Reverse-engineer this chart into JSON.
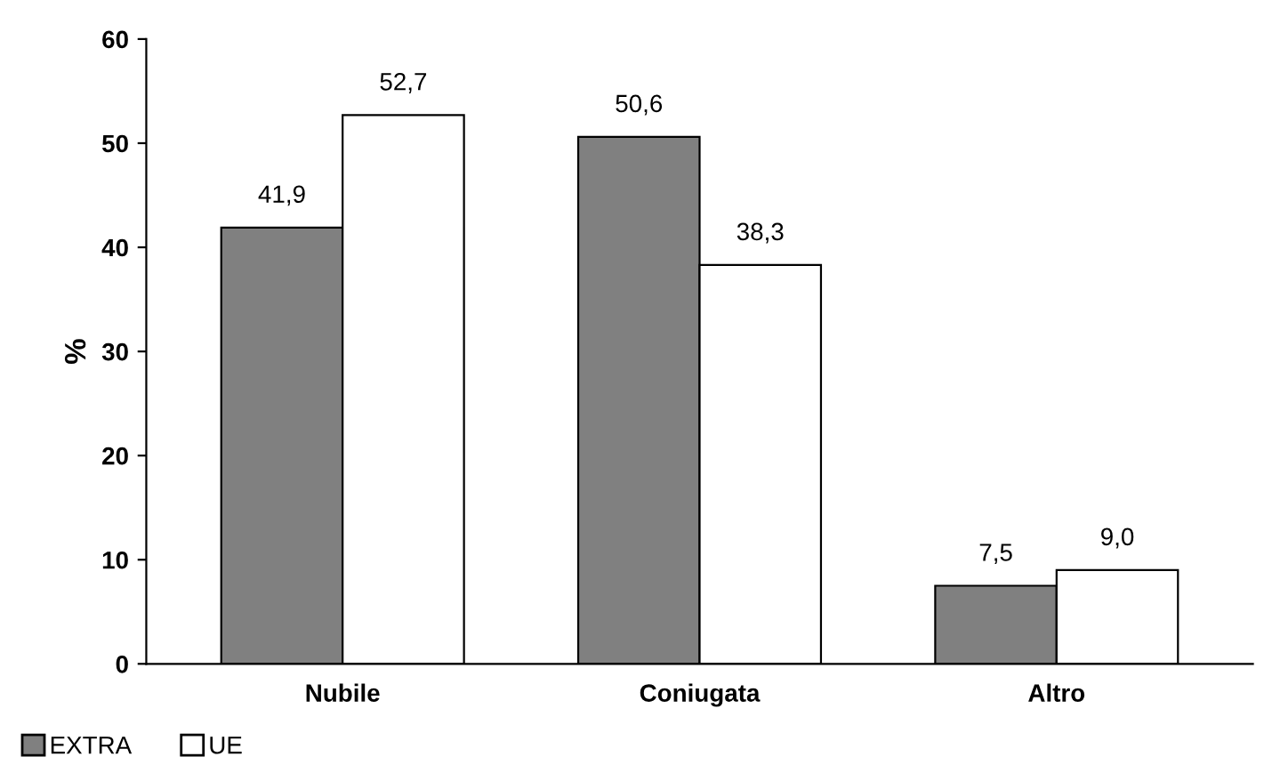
{
  "chart_data": {
    "type": "bar",
    "ylabel": "%",
    "categories": [
      "Nubile",
      "Coniugata",
      "Altro"
    ],
    "series": [
      {
        "name": "EXTRA",
        "color": "#808080",
        "values": [
          41.9,
          50.6,
          7.5
        ],
        "value_labels": [
          "41,9",
          "50,6",
          "7,5"
        ]
      },
      {
        "name": "UE",
        "color": "#ffffff",
        "values": [
          52.7,
          38.3,
          9.0
        ],
        "value_labels": [
          "52,7",
          "38,3",
          "9,0"
        ]
      }
    ],
    "ylim": [
      0,
      60
    ],
    "yticks": [
      0,
      10,
      20,
      30,
      40,
      50,
      60
    ],
    "grid": false,
    "legend": "bottom left"
  }
}
